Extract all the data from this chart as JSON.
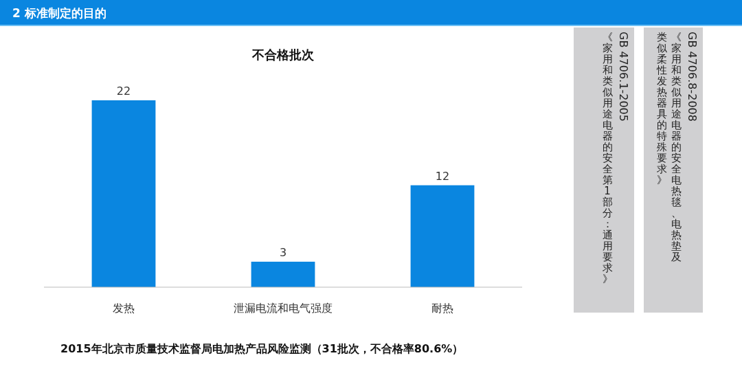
{
  "chart_data": {
    "type": "bar",
    "title": "不合格批次",
    "categories": [
      "发热",
      "泄漏电流和电气强度",
      "耐热"
    ],
    "values": [
      22,
      3,
      12
    ],
    "color": "#0a86e0",
    "data_labels": true,
    "annotations": [
      "2 标准制定的目的",
      "GB 4706.1-2005",
      "《家用和类似用途电器的安全第1部分：通用要求》",
      "GB 4706.8-2008",
      "《家用和类似用途电器的安全电热毯、电热垫及",
      "类似柔性发热器具的特殊要求》",
      "2015年北京市质量技术监督局电加热产品风险监测（31批次，不合格率80.6%）"
    ]
  }
}
